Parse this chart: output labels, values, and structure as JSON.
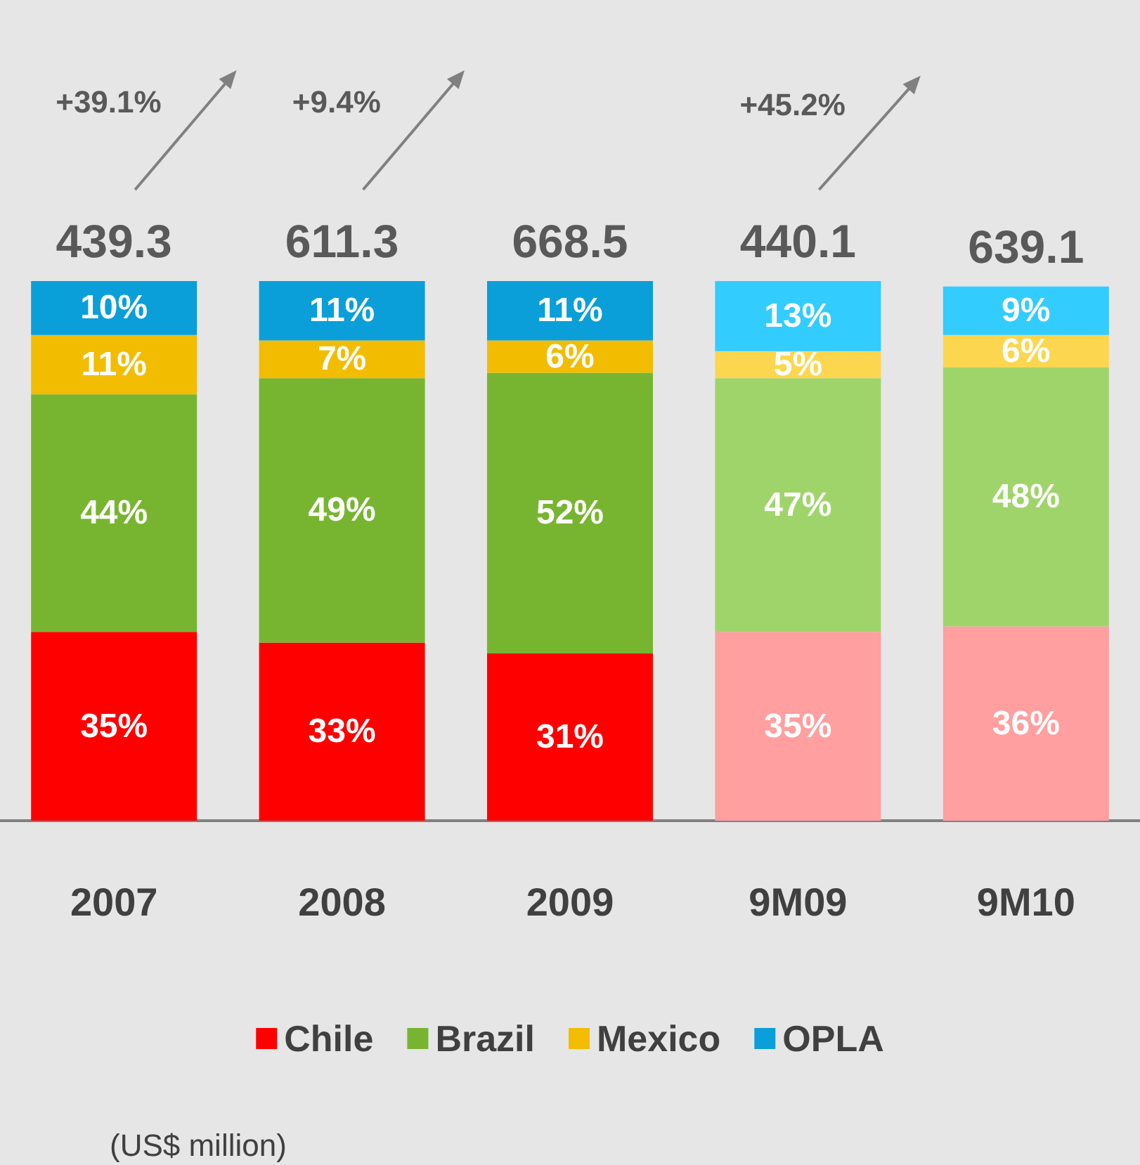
{
  "chart_data": {
    "type": "bar",
    "stacked": true,
    "tick_labels": "x",
    "categories": [
      "2007",
      "2008",
      "2009",
      "9M09",
      "9M10"
    ],
    "series": [
      {
        "name": "Chile",
        "color": "#ff0000",
        "colors": [
          "#ff0000",
          "#ff0000",
          "#ff0000",
          "#ff9f9f",
          "#ff9f9f"
        ],
        "values": [
          35,
          33,
          31,
          35,
          36
        ],
        "value_labels": [
          "35%",
          "33%",
          "31%",
          "35%",
          "36%"
        ]
      },
      {
        "name": "Brazil",
        "color": "#77b530",
        "colors": [
          "#77b530",
          "#77b530",
          "#77b530",
          "#9fd46a",
          "#9fd46a"
        ],
        "values": [
          44,
          49,
          52,
          47,
          48
        ],
        "value_labels": [
          "44%",
          "49%",
          "52%",
          "47%",
          "48%"
        ]
      },
      {
        "name": "Mexico",
        "color": "#f2bc00",
        "colors": [
          "#f2bc00",
          "#f2bc00",
          "#f2bc00",
          "#fcd64f",
          "#fcd64f"
        ],
        "values": [
          11,
          7,
          6,
          5,
          6
        ],
        "value_labels": [
          "11%",
          "7%",
          "6%",
          "5%",
          "6%"
        ]
      },
      {
        "name": "OPLA",
        "color": "#0a9fd8",
        "colors": [
          "#0a9fd8",
          "#0a9fd8",
          "#0a9fd8",
          "#33ccff",
          "#33ccff"
        ],
        "values": [
          10,
          11,
          11,
          13,
          9
        ],
        "value_labels": [
          "10%",
          "11%",
          "11%",
          "13%",
          "9%"
        ]
      }
    ],
    "annotations": [
      "439.3",
      "611.3",
      "668.5",
      "440.1",
      "639.1",
      "+39.1%",
      "+9.4%",
      "+45.2%",
      "(US$ million)"
    ],
    "legend": "bottom"
  }
}
